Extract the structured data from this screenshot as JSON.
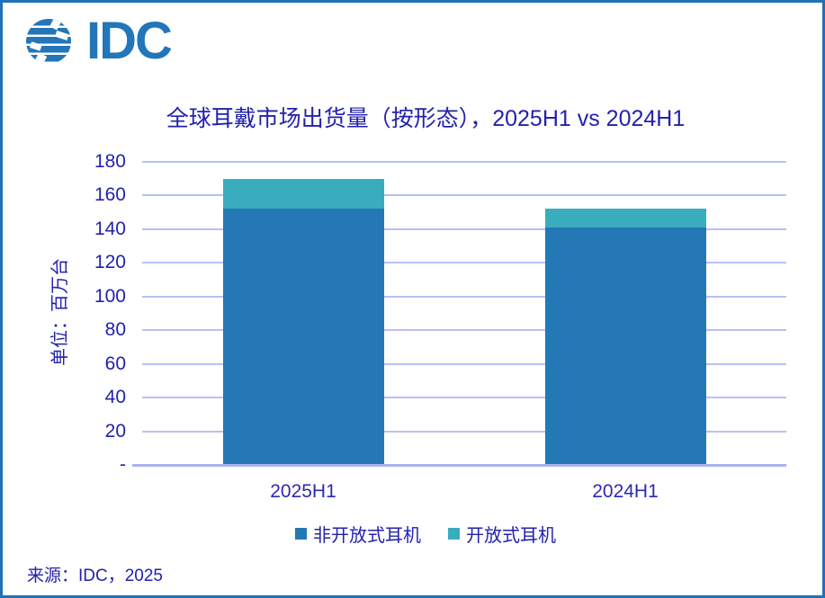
{
  "page": {
    "border_color": "#1F72B8",
    "background": "#FFFFFF"
  },
  "logo": {
    "text": "IDC",
    "color": "#2276B9"
  },
  "source": {
    "text": "来源：IDC，2025"
  },
  "chart_data": {
    "type": "bar",
    "stacked": true,
    "title": "全球耳戴市场出货量（按形态），2025H1 vs 2024H1",
    "ylabel": "单位：百万台",
    "categories": [
      "2025H1",
      "2024H1"
    ],
    "series": [
      {
        "name": "非开放式耳机",
        "color": "#2378B5",
        "values": [
          152,
          141
        ]
      },
      {
        "name": "开放式耳机",
        "color": "#39ADBE",
        "values": [
          18,
          11
        ]
      }
    ],
    "totals": [
      170,
      152
    ],
    "ylim": [
      0,
      180
    ],
    "ytick_step": 20,
    "ytick_labels": [
      "-",
      "20",
      "40",
      "60",
      "80",
      "100",
      "120",
      "140",
      "160",
      "180"
    ],
    "grid": true,
    "gridline_color": "#B9C0F3",
    "axis_line_color": "#ABB3EE",
    "text_color": "#2321AE",
    "legend_position": "bottom"
  }
}
